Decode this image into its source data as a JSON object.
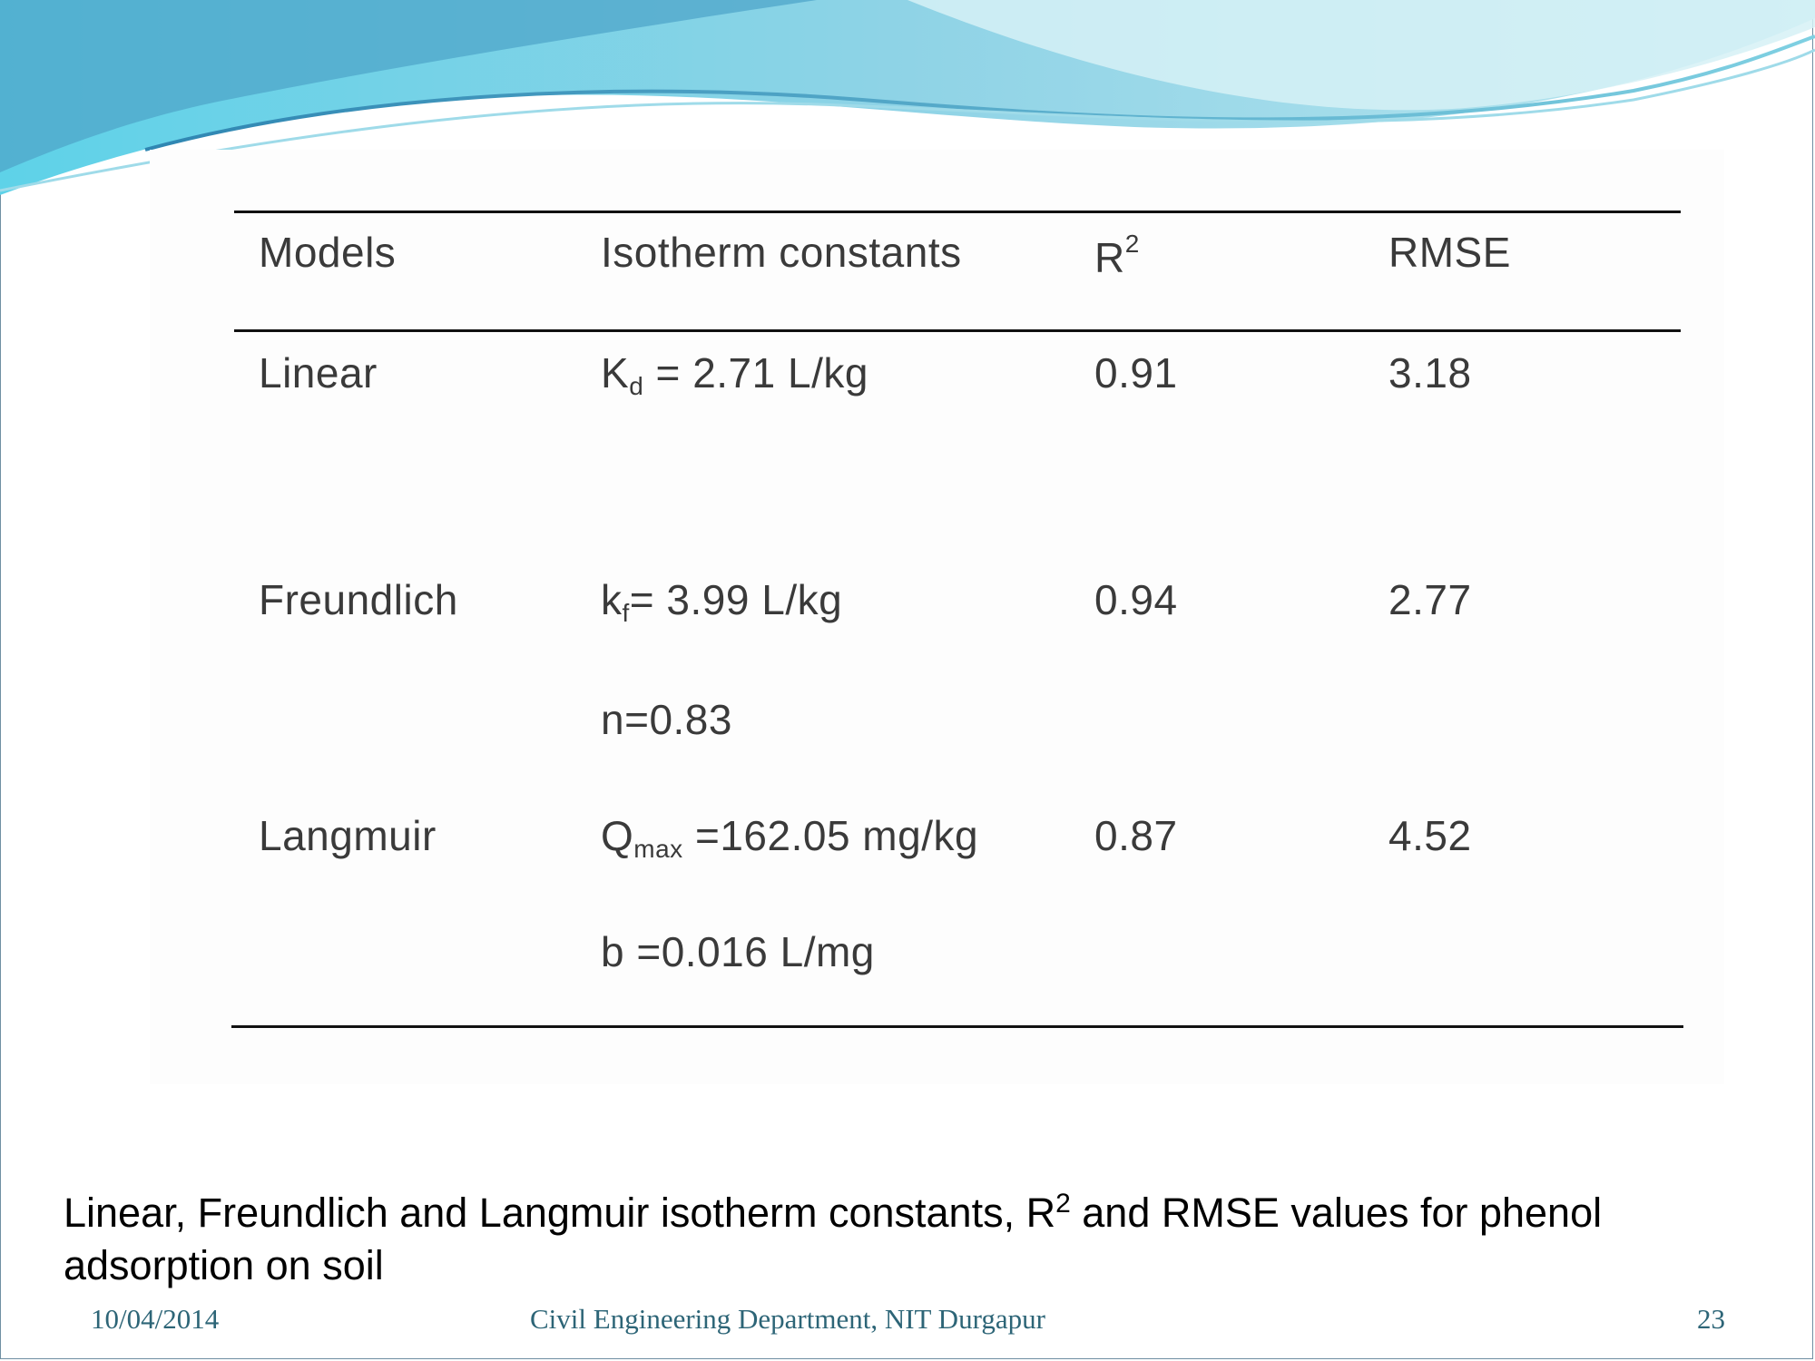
{
  "colors": {
    "wave_light": "#c8edf3",
    "wave_mid": "#7fcfe0",
    "wave_dark": "#3f8fb0",
    "footer_text": "#2d6577"
  },
  "table": {
    "headers": {
      "models": "Models",
      "constants": "Isotherm constants",
      "r2_base": "R",
      "r2_sup": "2",
      "rmse": "RMSE"
    },
    "rows": {
      "linear": {
        "model": "Linear",
        "k_sym": "K",
        "k_sub": "d",
        "k_val": " = 2.71 L/kg",
        "r2": "0.91",
        "rmse": "3.18"
      },
      "freundlich": {
        "model": "Freundlich",
        "k_sym": "k",
        "k_sub": "f",
        "k_val": "= 3.99 L/kg",
        "n_val": "n=0.83",
        "r2": "0.94",
        "rmse": "2.77"
      },
      "langmuir": {
        "model": "Langmuir",
        "q_sym": "Q",
        "q_sub": "max",
        "q_val": " =162.05  mg/kg",
        "b_val": "b =0.016 L/mg",
        "r2": "0.87",
        "rmse": "4.52"
      }
    }
  },
  "caption": {
    "part1": "Linear, Freundlich and Langmuir isotherm constants, R",
    "sup": "2",
    "part2": " and RMSE values for phenol adsorption on soil"
  },
  "footer": {
    "date": "10/04/2014",
    "department": "Civil Engineering Department, NIT Durgapur",
    "page": "23"
  }
}
